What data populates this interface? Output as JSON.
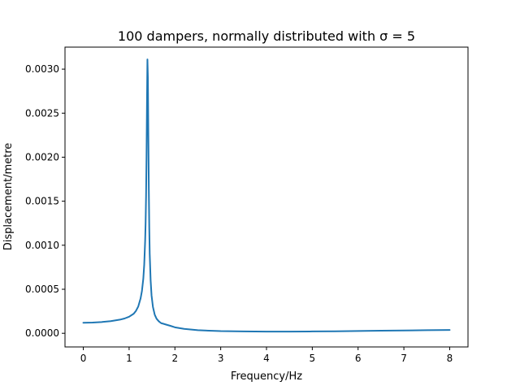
{
  "chart_data": {
    "type": "line",
    "title": "100 dampers, normally distributed with σ = 5",
    "xlabel": "Frequency/Hz",
    "ylabel": "Displacement/metre",
    "xlim": [
      -0.4,
      8.4
    ],
    "ylim": [
      -0.000155,
      0.00325
    ],
    "xticks": [
      0,
      1,
      2,
      3,
      4,
      5,
      6,
      7,
      8
    ],
    "xtick_labels": [
      "0",
      "1",
      "2",
      "3",
      "4",
      "5",
      "6",
      "7",
      "8"
    ],
    "yticks": [
      0,
      0.0005,
      0.001,
      0.0015,
      0.002,
      0.0025,
      0.003
    ],
    "ytick_labels": [
      "0.0000",
      "0.0005",
      "0.0010",
      "0.0015",
      "0.0020",
      "0.0025",
      "0.0030"
    ],
    "grid": false,
    "series": [
      {
        "color": "#1f77b4",
        "x": [
          0,
          0.2,
          0.4,
          0.6,
          0.8,
          0.9,
          1.0,
          1.1,
          1.15,
          1.2,
          1.25,
          1.28,
          1.31,
          1.33,
          1.35,
          1.36,
          1.37,
          1.38,
          1.39,
          1.4,
          1.41,
          1.42,
          1.43,
          1.44,
          1.45,
          1.47,
          1.49,
          1.52,
          1.56,
          1.6,
          1.65,
          1.7,
          1.75,
          1.8,
          1.9,
          2.0,
          2.2,
          2.5,
          3.0,
          3.5,
          4.0,
          4.5,
          5.0,
          5.5,
          6.0,
          6.5,
          7.0,
          7.5,
          8.0
        ],
        "y": [
          0.00012,
          0.000122,
          0.000128,
          0.000138,
          0.000155,
          0.000168,
          0.000188,
          0.000222,
          0.000255,
          0.000305,
          0.000395,
          0.00048,
          0.00062,
          0.00078,
          0.00105,
          0.00125,
          0.00155,
          0.002,
          0.0026,
          0.00311,
          0.0029,
          0.00225,
          0.00165,
          0.0012,
          0.0009,
          0.0006,
          0.00043,
          0.0003,
          0.00021,
          0.000165,
          0.000135,
          0.000115,
          0.000108,
          0.0001,
          8.5e-05,
          6.8e-05,
          5e-05,
          3.5e-05,
          2.5e-05,
          2.1e-05,
          1.9e-05,
          1.9e-05,
          2.1e-05,
          2.3e-05,
          2.6e-05,
          2.9e-05,
          3.2e-05,
          3.5e-05,
          3.8e-05
        ]
      }
    ]
  }
}
